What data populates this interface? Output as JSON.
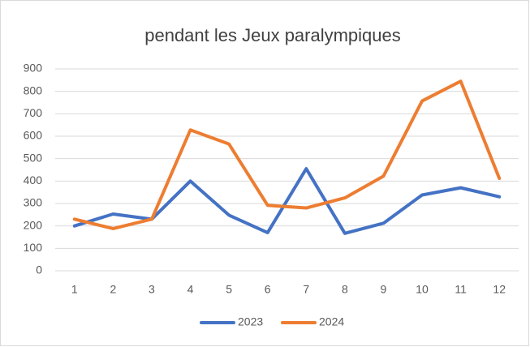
{
  "chart_data": {
    "type": "line",
    "title": "pendant les Jeux paralympiques",
    "categories": [
      "1",
      "2",
      "3",
      "4",
      "5",
      "6",
      "7",
      "8",
      "9",
      "10",
      "11",
      "12"
    ],
    "series": [
      {
        "name": "2023",
        "color": "#4472c4",
        "values": [
          200,
          253,
          230,
          400,
          248,
          170,
          455,
          167,
          212,
          338,
          370,
          330
        ]
      },
      {
        "name": "2024",
        "color": "#ed7d31",
        "values": [
          230,
          188,
          230,
          628,
          565,
          292,
          280,
          325,
          422,
          757,
          845,
          412
        ]
      }
    ],
    "ylim": [
      0,
      900
    ],
    "yticks": [
      0,
      100,
      200,
      300,
      400,
      500,
      600,
      700,
      800,
      900
    ],
    "grid": true,
    "legend": "bottom"
  }
}
